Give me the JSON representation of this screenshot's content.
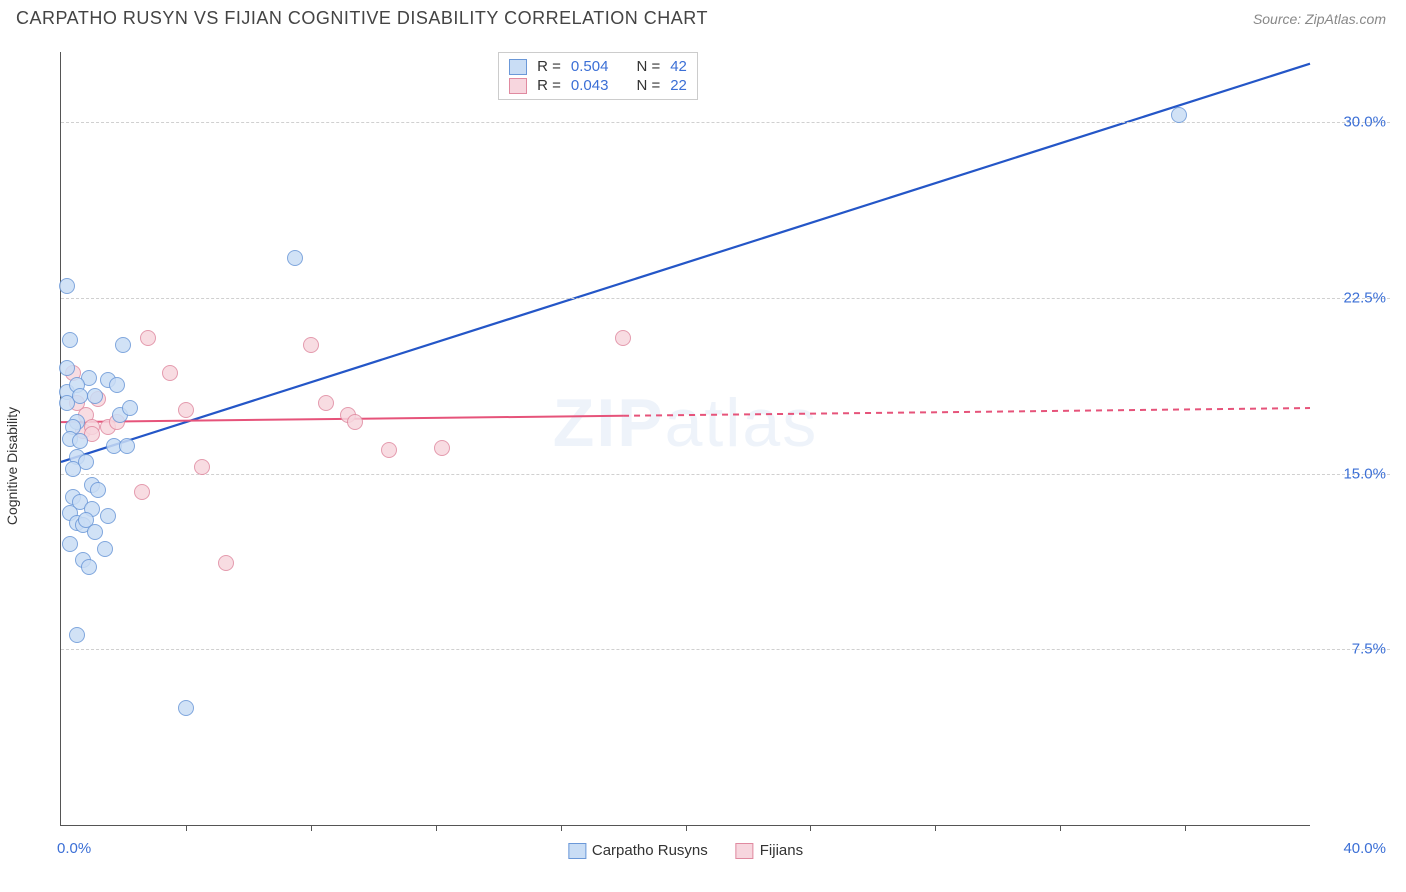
{
  "header": {
    "title": "CARPATHO RUSYN VS FIJIAN COGNITIVE DISABILITY CORRELATION CHART",
    "source_label": "Source: ZipAtlas.com"
  },
  "chart": {
    "type": "scatter",
    "y_axis_label": "Cognitive Disability",
    "watermark": "ZIPatlas",
    "xlim": [
      0,
      40
    ],
    "ylim": [
      0,
      33
    ],
    "x_tick_step": 4,
    "x_tick_labels": {
      "min": "0.0%",
      "max": "40.0%"
    },
    "y_gridlines": [
      7.5,
      15.0,
      22.5,
      30.0
    ],
    "y_tick_labels": [
      "7.5%",
      "15.0%",
      "22.5%",
      "30.0%"
    ],
    "background_color": "#ffffff",
    "grid_color": "#d0d0d0",
    "axis_color": "#555555",
    "label_color": "#3b6fd6",
    "marker_radius": 8,
    "marker_border_width": 1.2,
    "series": [
      {
        "name": "Carpatho Rusyns",
        "fill": "#c9ddf5",
        "stroke": "#6b98d8",
        "line_color": "#2456c7",
        "line_width": 2.2,
        "line_dash": "none",
        "R": "0.504",
        "N": "42",
        "trend": {
          "x1": 0,
          "y1": 15.5,
          "x2": 40,
          "y2": 32.5
        },
        "points": [
          [
            0.2,
            23.0
          ],
          [
            0.3,
            20.7
          ],
          [
            0.9,
            19.1
          ],
          [
            0.2,
            18.5
          ],
          [
            0.2,
            18.0
          ],
          [
            0.5,
            18.8
          ],
          [
            0.6,
            18.3
          ],
          [
            0.5,
            17.2
          ],
          [
            0.4,
            17.0
          ],
          [
            0.3,
            16.5
          ],
          [
            0.5,
            15.7
          ],
          [
            0.8,
            15.5
          ],
          [
            0.4,
            15.2
          ],
          [
            0.4,
            14.0
          ],
          [
            0.6,
            13.8
          ],
          [
            0.3,
            13.3
          ],
          [
            0.5,
            12.9
          ],
          [
            0.3,
            12.0
          ],
          [
            0.7,
            12.8
          ],
          [
            0.7,
            11.3
          ],
          [
            0.9,
            11.0
          ],
          [
            1.0,
            14.5
          ],
          [
            1.0,
            13.5
          ],
          [
            1.1,
            12.5
          ],
          [
            1.2,
            14.3
          ],
          [
            1.4,
            11.8
          ],
          [
            1.1,
            18.3
          ],
          [
            1.5,
            19.0
          ],
          [
            1.5,
            13.2
          ],
          [
            1.8,
            18.8
          ],
          [
            1.7,
            16.2
          ],
          [
            1.9,
            17.5
          ],
          [
            2.2,
            17.8
          ],
          [
            2.1,
            16.2
          ],
          [
            2.0,
            20.5
          ],
          [
            0.5,
            8.1
          ],
          [
            4.0,
            5.0
          ],
          [
            7.5,
            24.2
          ],
          [
            35.8,
            30.3
          ],
          [
            0.2,
            19.5
          ],
          [
            0.6,
            16.4
          ],
          [
            0.8,
            13.0
          ]
        ]
      },
      {
        "name": "Fijians",
        "fill": "#f7d6de",
        "stroke": "#e08aa0",
        "line_color": "#e6537a",
        "line_width": 2.0,
        "line_dash": "dashed_after",
        "dash_split_x": 18,
        "R": "0.043",
        "N": "22",
        "trend": {
          "x1": 0,
          "y1": 17.2,
          "x2": 40,
          "y2": 17.8
        },
        "points": [
          [
            0.5,
            18.0
          ],
          [
            0.8,
            17.5
          ],
          [
            0.7,
            16.8
          ],
          [
            1.2,
            18.2
          ],
          [
            1.5,
            17.0
          ],
          [
            2.8,
            20.8
          ],
          [
            3.5,
            19.3
          ],
          [
            4.0,
            17.7
          ],
          [
            2.6,
            14.2
          ],
          [
            4.5,
            15.3
          ],
          [
            5.3,
            11.2
          ],
          [
            8.0,
            20.5
          ],
          [
            8.5,
            18.0
          ],
          [
            9.2,
            17.5
          ],
          [
            9.4,
            17.2
          ],
          [
            10.5,
            16.0
          ],
          [
            12.2,
            16.1
          ],
          [
            18.0,
            20.8
          ],
          [
            0.4,
            19.3
          ],
          [
            1.0,
            17.0
          ],
          [
            1.0,
            16.7
          ],
          [
            1.8,
            17.2
          ]
        ]
      }
    ],
    "legend_bottom": [
      {
        "label": "Carpatho Rusyns",
        "fill": "#c9ddf5",
        "stroke": "#6b98d8"
      },
      {
        "label": "Fijians",
        "fill": "#f7d6de",
        "stroke": "#e08aa0"
      }
    ],
    "stats_box": {
      "rows": [
        {
          "fill": "#c9ddf5",
          "stroke": "#6b98d8",
          "r_label": "R =",
          "r": "0.504",
          "n_label": "N =",
          "n": "42"
        },
        {
          "fill": "#f7d6de",
          "stroke": "#e08aa0",
          "r_label": "R =",
          "r": "0.043",
          "n_label": "N =",
          "n": "22"
        }
      ]
    }
  }
}
